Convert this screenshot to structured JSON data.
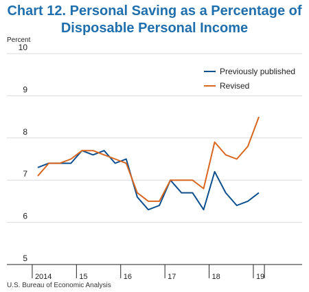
{
  "title_line1": "Chart 12. Personal Saving as a Percentage of",
  "title_line2": "Disposable Personal Income",
  "source": "U.S. Bureau of Economic Analysis",
  "colors": {
    "title": "#1f6fae",
    "previously_published": "#0b4f8f",
    "revised": "#d9661f",
    "axis": "#222222",
    "grid": "#d9d9d9"
  },
  "chart_data": {
    "type": "line",
    "ylabel": "Percent",
    "ylim": [
      5,
      10
    ],
    "yticks": [
      5,
      6,
      7,
      8,
      9,
      10
    ],
    "grid": true,
    "legend_position": "top-right",
    "x": [
      "2014Q1",
      "2014Q2",
      "2014Q3",
      "2014Q4",
      "2015Q1",
      "2015Q2",
      "2015Q3",
      "2015Q4",
      "2016Q1",
      "2016Q2",
      "2016Q3",
      "2016Q4",
      "2017Q1",
      "2017Q2",
      "2017Q3",
      "2017Q4",
      "2018Q1",
      "2018Q2",
      "2018Q3",
      "2018Q4",
      "2019Q1"
    ],
    "xtick_labels": [
      "2014",
      "15",
      "16",
      "17",
      "18",
      "19"
    ],
    "series": [
      {
        "name": "Previously published",
        "color": "#0b4f8f",
        "values": [
          7.3,
          7.4,
          7.4,
          7.4,
          7.7,
          7.6,
          7.7,
          7.4,
          7.5,
          6.6,
          6.3,
          6.4,
          7.0,
          6.7,
          6.7,
          6.3,
          7.2,
          6.7,
          6.4,
          6.5,
          6.7
        ]
      },
      {
        "name": "Revised",
        "color": "#d9661f",
        "values": [
          7.1,
          7.4,
          7.4,
          7.5,
          7.7,
          7.7,
          7.6,
          7.5,
          7.4,
          6.7,
          6.5,
          6.5,
          7.0,
          7.0,
          7.0,
          6.8,
          7.9,
          7.6,
          7.5,
          7.8,
          8.5
        ]
      }
    ]
  }
}
